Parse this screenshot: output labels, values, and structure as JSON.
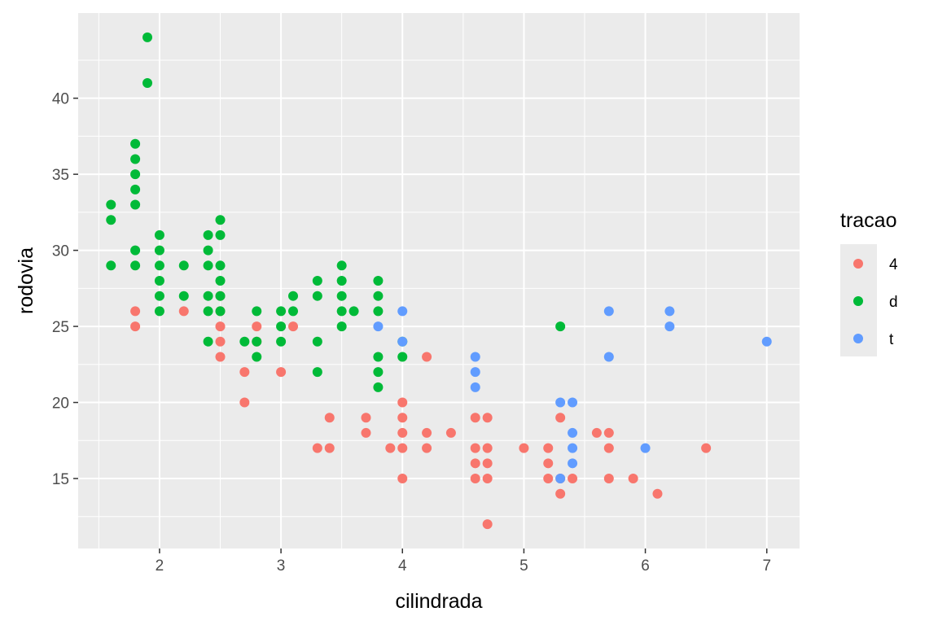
{
  "chart_data": {
    "type": "scatter",
    "title": "",
    "xlabel": "cilindrada",
    "ylabel": "rodovia",
    "xlim": [
      1.33,
      7.27
    ],
    "ylim": [
      10.4,
      45.6
    ],
    "xticks": [
      2,
      3,
      4,
      5,
      6,
      7
    ],
    "yticks": [
      15,
      20,
      25,
      30,
      35,
      40
    ],
    "grid": true,
    "legend": {
      "title": "tracao",
      "position": "right"
    },
    "series": [
      {
        "name": "4",
        "color": "#F8766D",
        "points": [
          [
            1.8,
            26
          ],
          [
            1.8,
            25
          ],
          [
            2.2,
            26
          ],
          [
            2.5,
            27
          ],
          [
            2.5,
            26
          ],
          [
            2.5,
            25
          ],
          [
            2.5,
            24
          ],
          [
            2.5,
            23
          ],
          [
            2.7,
            22
          ],
          [
            2.7,
            20
          ],
          [
            2.8,
            25
          ],
          [
            2.8,
            24
          ],
          [
            3.0,
            22
          ],
          [
            3.1,
            25
          ],
          [
            3.3,
            17
          ],
          [
            3.4,
            19
          ],
          [
            3.4,
            17
          ],
          [
            3.7,
            19
          ],
          [
            3.7,
            18
          ],
          [
            3.9,
            17
          ],
          [
            4.0,
            20
          ],
          [
            4.0,
            19
          ],
          [
            4.0,
            18
          ],
          [
            4.0,
            17
          ],
          [
            4.0,
            15
          ],
          [
            4.2,
            23
          ],
          [
            4.2,
            18
          ],
          [
            4.2,
            17
          ],
          [
            4.4,
            18
          ],
          [
            4.6,
            19
          ],
          [
            4.6,
            17
          ],
          [
            4.6,
            16
          ],
          [
            4.6,
            15
          ],
          [
            4.7,
            19
          ],
          [
            4.7,
            17
          ],
          [
            4.7,
            16
          ],
          [
            4.7,
            15
          ],
          [
            4.7,
            12
          ],
          [
            5.0,
            17
          ],
          [
            5.2,
            17
          ],
          [
            5.2,
            16
          ],
          [
            5.2,
            15
          ],
          [
            5.3,
            19
          ],
          [
            5.3,
            15
          ],
          [
            5.3,
            14
          ],
          [
            5.4,
            15
          ],
          [
            5.6,
            18
          ],
          [
            5.7,
            18
          ],
          [
            5.7,
            17
          ],
          [
            5.7,
            15
          ],
          [
            5.9,
            15
          ],
          [
            6.1,
            14
          ],
          [
            6.5,
            17
          ]
        ]
      },
      {
        "name": "d",
        "color": "#00BA38",
        "points": [
          [
            1.6,
            33
          ],
          [
            1.6,
            32
          ],
          [
            1.6,
            29
          ],
          [
            1.8,
            37
          ],
          [
            1.8,
            36
          ],
          [
            1.8,
            35
          ],
          [
            1.8,
            34
          ],
          [
            1.8,
            33
          ],
          [
            1.8,
            30
          ],
          [
            1.8,
            29
          ],
          [
            1.9,
            44
          ],
          [
            1.9,
            41
          ],
          [
            2.0,
            31
          ],
          [
            2.0,
            30
          ],
          [
            2.0,
            29
          ],
          [
            2.0,
            28
          ],
          [
            2.0,
            27
          ],
          [
            2.0,
            26
          ],
          [
            2.2,
            29
          ],
          [
            2.2,
            27
          ],
          [
            2.4,
            31
          ],
          [
            2.4,
            30
          ],
          [
            2.4,
            29
          ],
          [
            2.4,
            27
          ],
          [
            2.4,
            26
          ],
          [
            2.4,
            24
          ],
          [
            2.5,
            32
          ],
          [
            2.5,
            31
          ],
          [
            2.5,
            29
          ],
          [
            2.5,
            28
          ],
          [
            2.5,
            27
          ],
          [
            2.5,
            26
          ],
          [
            2.7,
            24
          ],
          [
            2.8,
            26
          ],
          [
            2.8,
            24
          ],
          [
            2.8,
            23
          ],
          [
            3.0,
            26
          ],
          [
            3.0,
            25
          ],
          [
            3.0,
            24
          ],
          [
            3.1,
            27
          ],
          [
            3.1,
            26
          ],
          [
            3.3,
            28
          ],
          [
            3.3,
            27
          ],
          [
            3.3,
            24
          ],
          [
            3.3,
            22
          ],
          [
            3.5,
            29
          ],
          [
            3.5,
            28
          ],
          [
            3.5,
            27
          ],
          [
            3.5,
            26
          ],
          [
            3.5,
            25
          ],
          [
            3.6,
            26
          ],
          [
            3.8,
            28
          ],
          [
            3.8,
            27
          ],
          [
            3.8,
            26
          ],
          [
            3.8,
            23
          ],
          [
            3.8,
            22
          ],
          [
            3.8,
            21
          ],
          [
            4.0,
            24
          ],
          [
            4.0,
            23
          ],
          [
            5.3,
            25
          ]
        ]
      },
      {
        "name": "t",
        "color": "#619CFF",
        "points": [
          [
            3.8,
            25
          ],
          [
            4.0,
            26
          ],
          [
            4.0,
            24
          ],
          [
            4.6,
            23
          ],
          [
            4.6,
            22
          ],
          [
            4.6,
            21
          ],
          [
            5.3,
            20
          ],
          [
            5.3,
            15
          ],
          [
            5.4,
            20
          ],
          [
            5.4,
            18
          ],
          [
            5.4,
            17
          ],
          [
            5.4,
            16
          ],
          [
            5.7,
            26
          ],
          [
            5.7,
            23
          ],
          [
            6.0,
            17
          ],
          [
            6.2,
            26
          ],
          [
            6.2,
            25
          ],
          [
            7.0,
            24
          ]
        ]
      }
    ]
  }
}
